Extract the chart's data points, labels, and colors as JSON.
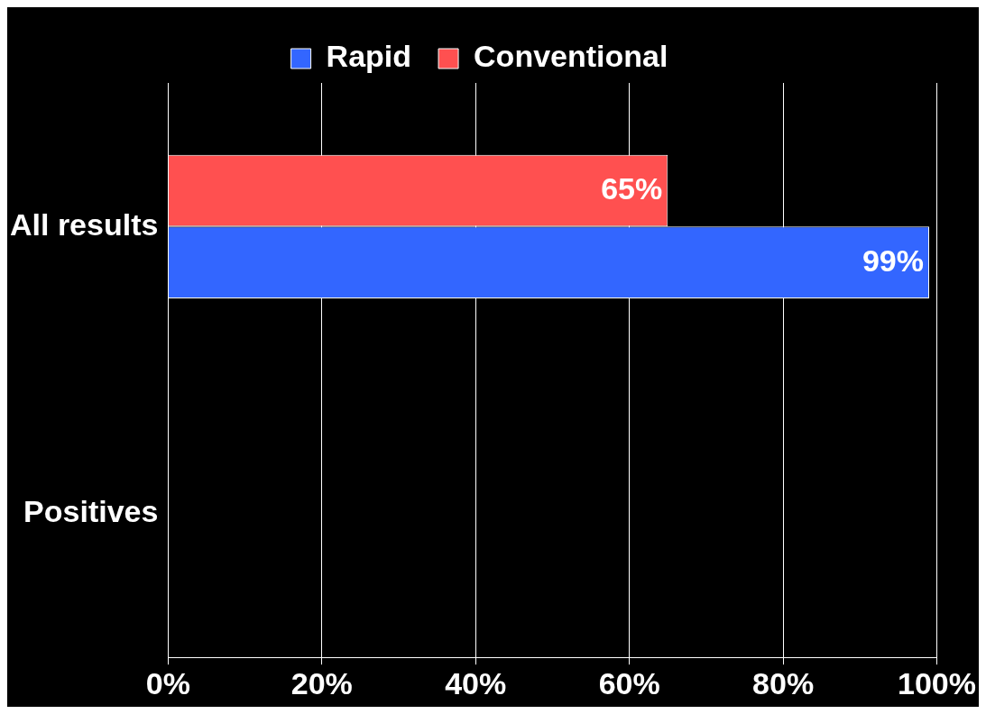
{
  "chart_data": {
    "type": "bar",
    "orientation": "horizontal",
    "categories": [
      "All results",
      "Positives"
    ],
    "series": [
      {
        "name": "Rapid",
        "color": "#3366ff",
        "values": [
          99,
          0
        ],
        "value_labels": [
          "99%",
          null
        ]
      },
      {
        "name": "Conventional",
        "color": "#ff5050",
        "values": [
          65,
          0
        ],
        "value_labels": [
          "65%",
          null
        ]
      }
    ],
    "xlim": [
      0,
      100
    ],
    "xticks": [
      {
        "value": 0,
        "label": "0%"
      },
      {
        "value": 20,
        "label": "20%"
      },
      {
        "value": 40,
        "label": "40%"
      },
      {
        "value": 60,
        "label": "60%"
      },
      {
        "value": 80,
        "label": "80%"
      },
      {
        "value": 100,
        "label": "100%"
      }
    ],
    "grid": "x",
    "legend": "top"
  }
}
